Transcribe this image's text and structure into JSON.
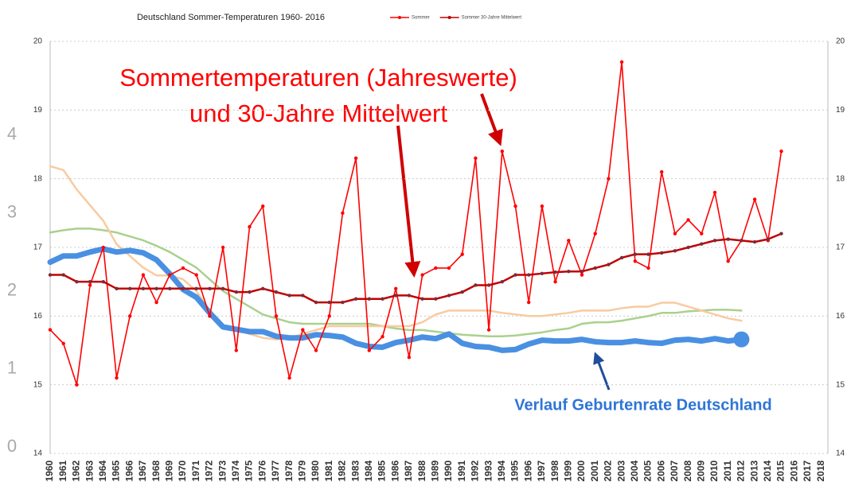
{
  "chart_data": {
    "type": "line",
    "title": "Deutschland  Sommer-Temperaturen 1960- 2016",
    "annotations": [
      "Sommertemperaturen (Jahreswerte)",
      "und 30-Jahre Mittelwert",
      "Verlauf Geburtenrate Deutschland"
    ],
    "categories": [
      "1960",
      "1961",
      "1962",
      "1963",
      "1964",
      "1965",
      "1966",
      "1967",
      "1968",
      "1969",
      "1970",
      "1971",
      "1972",
      "1973",
      "1974",
      "1975",
      "1976",
      "1977",
      "1978",
      "1979",
      "1980",
      "1981",
      "1982",
      "1983",
      "1984",
      "1985",
      "1986",
      "1987",
      "1988",
      "1989",
      "1990",
      "1991",
      "1992",
      "1993",
      "1994",
      "1995",
      "1996",
      "1997",
      "1998",
      "1999",
      "2000",
      "2001",
      "2002",
      "2003",
      "2004",
      "2005",
      "2006",
      "2007",
      "2008",
      "2009",
      "2010",
      "2011",
      "2012",
      "2013",
      "2014",
      "2015",
      "2016",
      "2017",
      "2018"
    ],
    "ylim": [
      14,
      20
    ],
    "yticks": [
      14,
      15,
      16,
      17,
      18,
      19,
      20
    ],
    "y2lim": [
      0,
      5.2
    ],
    "y2ticks": [
      0,
      1,
      2,
      3,
      4
    ],
    "grid": true,
    "series": [
      {
        "color": "#a9d18e",
        "axis": "y2",
        "values": [
          2.75,
          2.78,
          2.8,
          2.8,
          2.78,
          2.75,
          2.7,
          2.65,
          2.58,
          2.5,
          2.4,
          2.3,
          2.15,
          2.0,
          1.9,
          1.8,
          1.7,
          1.65,
          1.6,
          1.58,
          1.58,
          1.58,
          1.58,
          1.58,
          1.58,
          1.55,
          1.52,
          1.5,
          1.5,
          1.48,
          1.46,
          1.44,
          1.43,
          1.42,
          1.42,
          1.43,
          1.45,
          1.47,
          1.5,
          1.52,
          1.58,
          1.6,
          1.6,
          1.62,
          1.65,
          1.68,
          1.72,
          1.72,
          1.74,
          1.75,
          1.76,
          1.76,
          1.75,
          null,
          null,
          null,
          null,
          null,
          null
        ]
      },
      {
        "color": "#f8cba0",
        "axis": "y2",
        "values": [
          3.6,
          3.55,
          3.3,
          3.1,
          2.9,
          2.6,
          2.45,
          2.3,
          2.2,
          2.2,
          2.15,
          2.0,
          1.75,
          1.55,
          1.5,
          1.45,
          1.4,
          1.38,
          1.4,
          1.45,
          1.5,
          1.55,
          1.55,
          1.55,
          1.55,
          1.55,
          1.55,
          1.55,
          1.6,
          1.7,
          1.75,
          1.75,
          1.75,
          1.75,
          1.72,
          1.7,
          1.68,
          1.68,
          1.7,
          1.72,
          1.75,
          1.75,
          1.75,
          1.78,
          1.8,
          1.8,
          1.85,
          1.85,
          1.8,
          1.75,
          1.7,
          1.65,
          1.62,
          null,
          null,
          null,
          null,
          null,
          null
        ]
      },
      {
        "color": "#4a90e2",
        "axis": "y2",
        "values": [
          2.37,
          2.45,
          2.45,
          2.5,
          2.54,
          2.5,
          2.52,
          2.49,
          2.4,
          2.22,
          2.02,
          1.92,
          1.72,
          1.54,
          1.51,
          1.48,
          1.48,
          1.42,
          1.4,
          1.4,
          1.44,
          1.43,
          1.41,
          1.33,
          1.29,
          1.28,
          1.34,
          1.37,
          1.41,
          1.39,
          1.45,
          1.33,
          1.29,
          1.28,
          1.24,
          1.25,
          1.32,
          1.37,
          1.36,
          1.36,
          1.38,
          1.35,
          1.34,
          1.34,
          1.36,
          1.34,
          1.33,
          1.37,
          1.38,
          1.36,
          1.39,
          1.36,
          1.38,
          null,
          null,
          null,
          null,
          null,
          null
        ]
      },
      {
        "name": "Sommer",
        "color": "#ff0000",
        "values": [
          15.8,
          15.6,
          15.0,
          16.45,
          17.0,
          15.1,
          16.0,
          16.6,
          16.2,
          16.6,
          16.7,
          16.6,
          16.0,
          17.0,
          15.5,
          17.3,
          17.6,
          16.0,
          15.1,
          15.8,
          15.5,
          16.0,
          17.5,
          18.3,
          15.5,
          15.7,
          16.4,
          15.4,
          16.6,
          16.7,
          16.7,
          16.9,
          18.3,
          15.8,
          18.4,
          17.6,
          16.2,
          17.6,
          16.5,
          17.1,
          16.6,
          17.2,
          18.0,
          19.7,
          16.8,
          16.7,
          18.1,
          17.2,
          17.4,
          17.2,
          17.8,
          16.8,
          17.1,
          17.7,
          17.1,
          18.4,
          null,
          null,
          null
        ]
      },
      {
        "name": "Sommer 30-Jahre Mittelwert",
        "color": "#c00000",
        "values": [
          16.6,
          16.6,
          16.5,
          16.5,
          16.5,
          16.4,
          16.4,
          16.4,
          16.4,
          16.4,
          16.4,
          16.4,
          16.4,
          16.4,
          16.35,
          16.35,
          16.4,
          16.35,
          16.3,
          16.3,
          16.2,
          16.2,
          16.2,
          16.25,
          16.25,
          16.25,
          16.3,
          16.3,
          16.25,
          16.25,
          16.3,
          16.35,
          16.45,
          16.45,
          16.5,
          16.6,
          16.6,
          16.62,
          16.64,
          16.65,
          16.65,
          16.7,
          16.75,
          16.85,
          16.9,
          16.9,
          16.92,
          16.95,
          17.0,
          17.05,
          17.1,
          17.12,
          17.1,
          17.08,
          17.12,
          17.2,
          null,
          null,
          null
        ]
      }
    ]
  }
}
